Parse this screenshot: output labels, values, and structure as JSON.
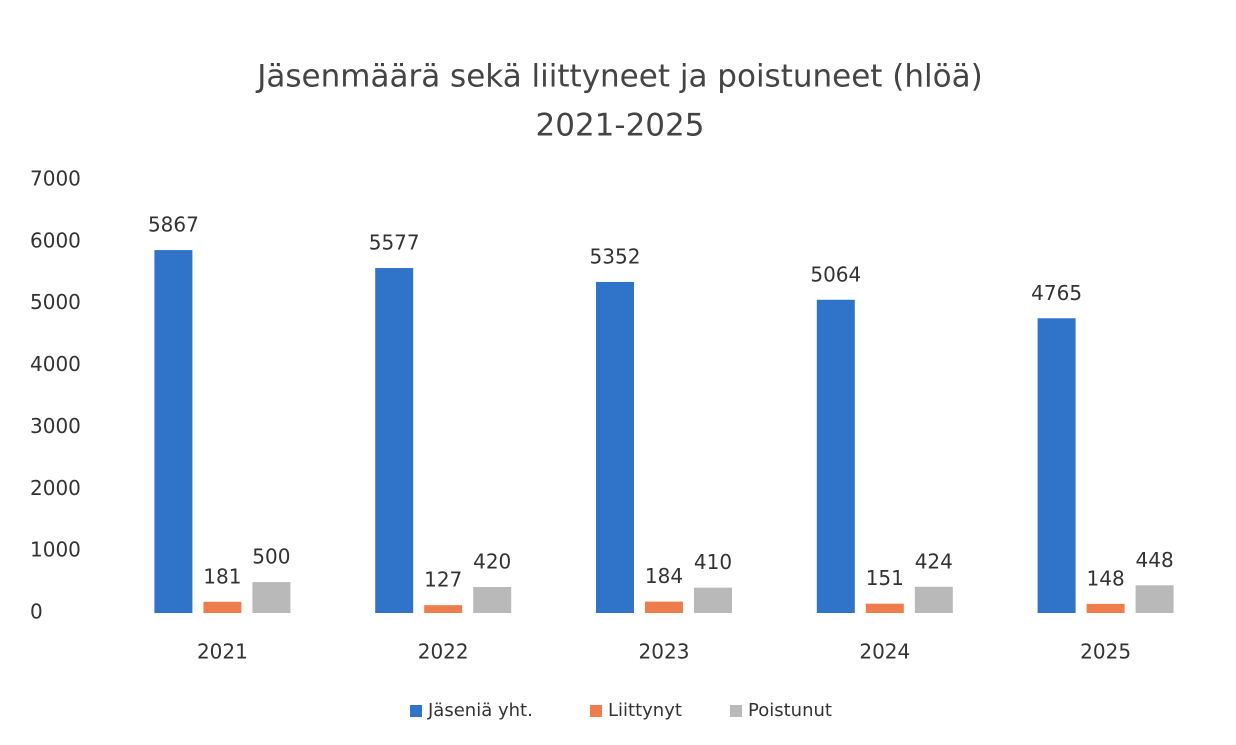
{
  "chart_data": {
    "type": "bar",
    "title": [
      "Jäsenmäärä sekä liittyneet ja poistuneet (hlöä)",
      "2021-2025"
    ],
    "categories": [
      "2021",
      "2022",
      "2023",
      "2024",
      "2025"
    ],
    "series": [
      {
        "name": "Jäseniä yht.",
        "color": "#2f74c8",
        "values": [
          5867,
          5577,
          5352,
          5064,
          4765
        ]
      },
      {
        "name": "Liittynyt",
        "color": "#ee7d4e",
        "values": [
          181,
          127,
          184,
          151,
          148
        ]
      },
      {
        "name": "Poistunut",
        "color": "#b9b9b9",
        "values": [
          500,
          420,
          410,
          424,
          448
        ]
      }
    ],
    "ylim": [
      0,
      7000
    ],
    "yticks": [
      0,
      1000,
      2000,
      3000,
      4000,
      5000,
      6000,
      7000
    ],
    "grid": false,
    "legend": "bottom"
  }
}
